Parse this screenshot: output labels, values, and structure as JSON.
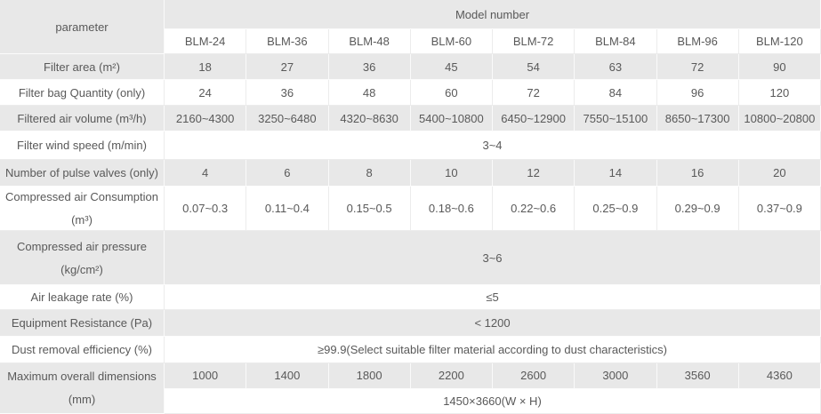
{
  "header": {
    "parameter_label": "parameter",
    "model_number_label": "Model number",
    "models": [
      "BLM-24",
      "BLM-36",
      "BLM-48",
      "BLM-60",
      "BLM-72",
      "BLM-84",
      "BLM-96",
      "BLM-120"
    ]
  },
  "colors": {
    "row_shade_gray": "#e8e8e8",
    "row_shade_white": "#ffffff",
    "text": "#595959"
  },
  "rows": [
    {
      "name": "filter-area",
      "label_lines": [
        "Filter area (m²)"
      ],
      "shade": "gray",
      "cells": [
        "18",
        "27",
        "36",
        "45",
        "54",
        "63",
        "72",
        "90"
      ]
    },
    {
      "name": "filter-bag-quantity",
      "label_lines": [
        "Filter bag Quantity (only)"
      ],
      "shade": "white",
      "cells": [
        "24",
        "36",
        "48",
        "60",
        "72",
        "84",
        "96",
        "120"
      ]
    },
    {
      "name": "filtered-air-volume",
      "label_lines": [
        "Filtered air volume (m³/h)"
      ],
      "shade": "gray",
      "cells": [
        "2160~4300",
        "3250~6480",
        "4320~8630",
        "5400~10800",
        "6450~12900",
        "7550~15100",
        "8650~17300",
        "10800~20800"
      ]
    },
    {
      "name": "filter-wind-speed",
      "label_lines": [
        "Filter wind speed (m/min)"
      ],
      "shade": "white",
      "span": "3~4"
    },
    {
      "name": "pulse-valves",
      "label_lines": [
        "Number of pulse valves (only)"
      ],
      "shade": "gray",
      "cells": [
        "4",
        "6",
        "8",
        "10",
        "12",
        "14",
        "16",
        "20"
      ]
    },
    {
      "name": "compressed-air-consumption",
      "label_lines": [
        "Compressed air Consumption",
        "(m³)"
      ],
      "shade": "white",
      "cells": [
        "0.07~0.3",
        "0.11~0.4",
        "0.15~0.5",
        "0.18~0.6",
        "0.22~0.6",
        "0.25~0.9",
        "0.29~0.9",
        "0.37~0.9"
      ]
    },
    {
      "name": "compressed-air-pressure",
      "label_lines": [
        "Compressed air pressure",
        "(kg/cm²)"
      ],
      "shade": "gray",
      "span": "3~6"
    },
    {
      "name": "air-leakage-rate",
      "label_lines": [
        "Air leakage rate (%)"
      ],
      "shade": "white",
      "span": "≤5"
    },
    {
      "name": "equipment-resistance",
      "label_lines": [
        "Equipment Resistance (Pa)"
      ],
      "shade": "gray",
      "span": "< 1200"
    },
    {
      "name": "dust-removal-efficiency",
      "label_lines": [
        "Dust removal efficiency (%)"
      ],
      "shade": "white",
      "span": "≥99.9(Select suitable filter material according to dust characteristics)"
    },
    {
      "name": "maximum-overall-dimensions",
      "label_lines": [
        "Maximum overall dimensions",
        "(mm)"
      ],
      "shade": "gray",
      "label_rowspan": 2,
      "cells": [
        "1000",
        "1400",
        "1800",
        "2200",
        "2600",
        "3000",
        "3560",
        "4360"
      ],
      "second_row": {
        "shade": "white",
        "span": "1450×3660(W × H)"
      }
    }
  ]
}
